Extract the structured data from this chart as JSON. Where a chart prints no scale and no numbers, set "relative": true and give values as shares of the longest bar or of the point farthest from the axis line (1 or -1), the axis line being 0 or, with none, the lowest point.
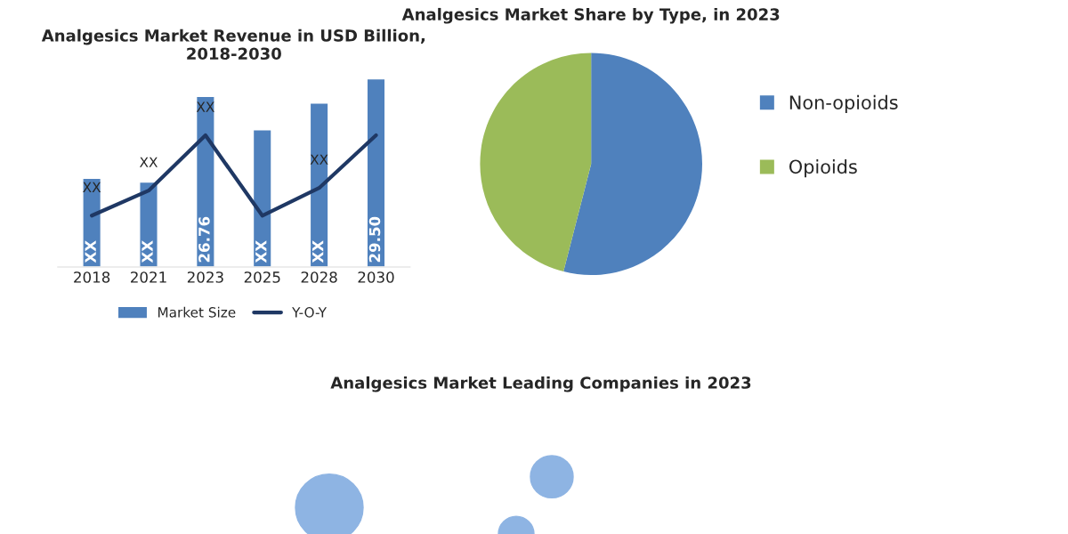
{
  "chart_data": [
    {
      "type": "bar",
      "title": "Analgesics Market Revenue in USD Billion, 2018-2030",
      "categories": [
        "2018",
        "2021",
        "2023",
        "2025",
        "2028",
        "2030"
      ],
      "tick_labels": "x",
      "legend": "bottom",
      "series": [
        {
          "name": "Market Size",
          "color": "#4f81bd",
          "values": [
            13.9,
            13.3,
            26.76,
            21.5,
            25.7,
            29.5
          ],
          "value_labels": [
            "XX",
            "XX",
            "26.76",
            "XX",
            "XX",
            "29.50"
          ]
        }
      ]
    },
    {
      "type": "line",
      "categories": [
        "2018",
        "2021",
        "2023",
        "2025",
        "2028",
        "2030"
      ],
      "relative": true,
      "tick_labels": false,
      "legend": "bottom",
      "annotations": [
        {
          "text": "XX",
          "x": "2018",
          "y": 0.39
        },
        {
          "text": "XX",
          "x": "2021",
          "y": 0.58
        },
        {
          "text": "XX",
          "x": "2023",
          "y": 1.0
        },
        {
          "text": "XX",
          "x": "2028",
          "y": 0.6
        }
      ],
      "series": [
        {
          "name": "Y-O-Y",
          "color": "#1f3864",
          "values": [
            0.39,
            0.58,
            1.0,
            0.39,
            0.6,
            1.0
          ]
        }
      ]
    },
    {
      "type": "pie",
      "title": "Analgesics Market Share by Type, in 2023",
      "categories": [
        "Non-opioids",
        "Opioids"
      ],
      "values": [
        54,
        46
      ],
      "colors": [
        "#4f81bd",
        "#9bbb59"
      ],
      "legend": "right"
    },
    {
      "type": "other",
      "title": "Analgesics Market Leading Companies in 2023"
    }
  ]
}
